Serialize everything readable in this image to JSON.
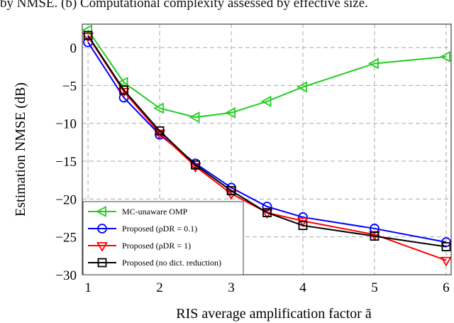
{
  "caption": "by NMSE. (b) Computational complexity assessed by effective size.",
  "chart_data": {
    "type": "line",
    "title": "",
    "xlabel": "RIS average amplification factor ā",
    "ylabel": "Estimation NMSE (dB)",
    "xlim": [
      0.92,
      6.07
    ],
    "ylim": [
      -30,
      3.1
    ],
    "xticks": [
      1,
      2,
      3,
      4,
      5,
      6
    ],
    "yticks": [
      0,
      -5,
      -10,
      -15,
      -20,
      -25,
      -30
    ],
    "grid": true,
    "legend_position": "bottom-left",
    "x": [
      1,
      1.5,
      2,
      2.5,
      3,
      3.5,
      4,
      5,
      6
    ],
    "series": [
      {
        "name": "MC-unaware OMP",
        "color": "#22cc22",
        "marker": "triangle-left",
        "values": [
          2.3,
          -4.6,
          -8.0,
          -9.2,
          -8.6,
          -7.1,
          -5.2,
          -2.1,
          -1.2
        ]
      },
      {
        "name": "Proposed (ρDR = 0.1)",
        "color": "#0000ff",
        "marker": "circle",
        "values": [
          0.7,
          -6.6,
          -11.5,
          -15.3,
          -18.5,
          -21.0,
          -22.4,
          -23.9,
          -25.7
        ]
      },
      {
        "name": "Proposed (ρDR = 1)",
        "color": "#ff0000",
        "marker": "triangle-down",
        "values": [
          1.5,
          -5.8,
          -11.3,
          -15.7,
          -19.3,
          -21.8,
          -22.9,
          -24.7,
          -28.1
        ]
      },
      {
        "name": "Proposed (no dict. reduction)",
        "color": "#000000",
        "marker": "square",
        "values": [
          1.6,
          -5.6,
          -11.0,
          -15.5,
          -18.9,
          -21.8,
          -23.5,
          -24.9,
          -26.3
        ]
      }
    ]
  }
}
